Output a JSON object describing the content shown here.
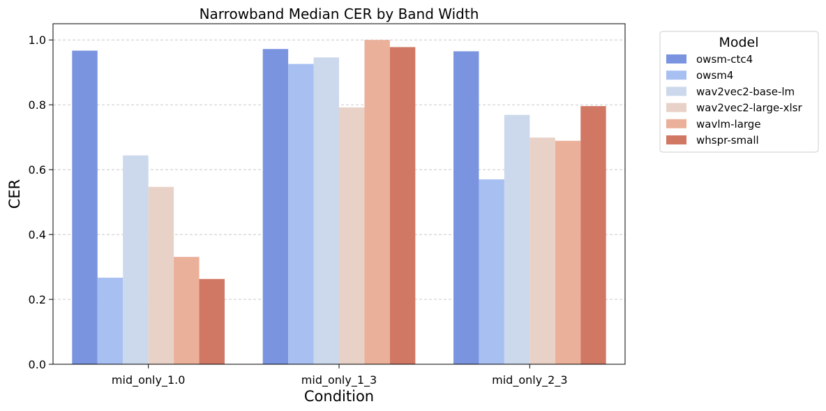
{
  "chart_data": {
    "type": "bar",
    "title": "Narrowband Median CER by Band Width",
    "xlabel": "Condition",
    "ylabel": "CER",
    "categories": [
      "mid_only_1.0",
      "mid_only_1_3",
      "mid_only_2_3"
    ],
    "ylim": [
      0,
      1.05
    ],
    "yticks": [
      "0.0",
      "0.2",
      "0.4",
      "0.6",
      "0.8",
      "1.0"
    ],
    "grid": "horizontal-dashed",
    "legend": {
      "title": "Model",
      "placement": "outside-right"
    },
    "series": [
      {
        "name": "owsm-ctc4",
        "color": "#7a94e0",
        "values": [
          0.967,
          0.972,
          0.965
        ]
      },
      {
        "name": "owsm4",
        "color": "#a8bff2",
        "values": [
          0.267,
          0.926,
          0.57
        ]
      },
      {
        "name": "wav2vec2-base-lm",
        "color": "#ccd8eb",
        "values": [
          0.644,
          0.946,
          0.769
        ]
      },
      {
        "name": "wav2vec2-large-xlsr",
        "color": "#e8d2c8",
        "values": [
          0.547,
          0.792,
          0.699
        ]
      },
      {
        "name": "wavlm-large",
        "color": "#ebb09a",
        "values": [
          0.331,
          1.0,
          0.689
        ]
      },
      {
        "name": "whspr-small",
        "color": "#d17865",
        "values": [
          0.263,
          0.978,
          0.796
        ]
      }
    ]
  }
}
